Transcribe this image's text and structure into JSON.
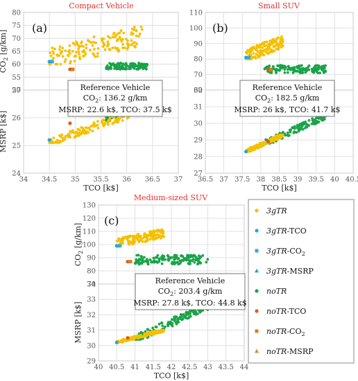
{
  "colors": {
    "3gTR": "#f5c000",
    "noTR": "#1aa34a",
    "min_tco": "#1fa8e0",
    "min_co2": "#33aad8",
    "min_msrp": "#2c9fd6",
    "no_tco": "#e05a1a",
    "no_co2": "#e07b1f",
    "no_msrp": "#d9862a",
    "title": "#e8302c",
    "grid": "#d9d9d9"
  },
  "legend": {
    "items": [
      {
        "label_prefix": "3gTR",
        "label_suffix": "",
        "marker": "dot",
        "color_key": "3gTR"
      },
      {
        "label_prefix": "3gTR",
        "label_suffix": "-TCO",
        "marker": "dot",
        "color_key": "min_tco"
      },
      {
        "label_prefix": "3gTR",
        "label_suffix": "-CO2",
        "marker": "square",
        "color_key": "min_co2"
      },
      {
        "label_prefix": "3gTR",
        "label_suffix": "-MSRP",
        "marker": "triangle",
        "color_key": "min_msrp"
      },
      {
        "label_prefix": "noTR",
        "label_suffix": "",
        "marker": "dot",
        "color_key": "noTR"
      },
      {
        "label_prefix": "noTR",
        "label_suffix": "-TCO",
        "marker": "dot",
        "color_key": "no_tco"
      },
      {
        "label_prefix": "noTR",
        "label_suffix": "-CO2",
        "marker": "square",
        "color_key": "no_co2"
      },
      {
        "label_prefix": "noTR",
        "label_suffix": "-MSRP",
        "marker": "triangle",
        "color_key": "no_msrp"
      }
    ]
  },
  "chart_data": [
    {
      "type": "scatter",
      "title": "Compact Vehicle",
      "panel_label": "(a)",
      "xlabel": "TCO [k$]",
      "xlim": [
        34,
        37
      ],
      "xticks": [
        34,
        34.5,
        35,
        35.5,
        36,
        36.5,
        37
      ],
      "top": {
        "ylabel": "CO2 [g/km]",
        "ylim": [
          50,
          80
        ],
        "yticks": [
          50,
          55,
          60,
          65,
          70,
          75,
          80
        ]
      },
      "bottom": {
        "ylabel": "MSRP [k$]",
        "ylim": [
          24,
          27
        ],
        "yticks": [
          24,
          25,
          26,
          27
        ]
      },
      "reference": {
        "title": "Reference Vehicle",
        "co2_line": "CO2: 136.2 g/km",
        "line3": "MSRP: 22.6 k$, TCO: 37.5 k$"
      },
      "series_3gTR": {
        "tco": [
          34.5,
          36.3
        ],
        "co2": [
          60,
          75
        ],
        "msrp": [
          25.1,
          26.3
        ]
      },
      "series_noTR": {
        "tco": [
          35.6,
          36.4
        ],
        "co2": [
          58,
          60.5
        ],
        "msrp": [
          25.9,
          26.8
        ]
      },
      "best": {
        "3gTR": {
          "tco": 34.5,
          "co2": 61,
          "msrp": 25.2
        },
        "noTR": {
          "tco": 34.9,
          "co2": 58,
          "msrp": 25.8
        }
      }
    },
    {
      "type": "scatter",
      "title": "Small SUV",
      "panel_label": "(b)",
      "xlabel": "TCO [k$]",
      "xlim": [
        36.5,
        40.5
      ],
      "xticks": [
        36.5,
        37,
        37.5,
        38,
        38.5,
        39,
        39.5,
        40,
        40.5
      ],
      "top": {
        "ylabel": "",
        "ylim": [
          60,
          110
        ],
        "yticks": [
          60,
          70,
          80,
          90,
          100,
          110
        ]
      },
      "bottom": {
        "ylabel": "",
        "ylim": [
          27,
          32
        ],
        "yticks": [
          27,
          28,
          29,
          30,
          31,
          32
        ]
      },
      "reference": {
        "title": "Reference Vehicle",
        "co2_line": "CO2: 182.5 g/km",
        "line3": "MSRP: 26 k$, TCO: 41.7 k$"
      },
      "series_3gTR": {
        "tco": [
          37.6,
          38.6
        ],
        "co2": [
          80,
          95
        ],
        "msrp": [
          28.3,
          29.3
        ]
      },
      "series_noTR": {
        "tco": [
          38.1,
          39.8
        ],
        "co2": [
          71,
          76
        ],
        "msrp": [
          28.8,
          30.5
        ]
      },
      "best": {
        "3gTR": {
          "tco": 37.6,
          "co2": 81,
          "msrp": 28.3
        },
        "noTR": {
          "tco": 38.2,
          "co2": 73,
          "msrp": 28.9
        }
      }
    },
    {
      "type": "scatter",
      "title": "Medium-sized SUV",
      "panel_label": "(c)",
      "xlabel": "TCO [k$]",
      "xlim": [
        40,
        44
      ],
      "xticks": [
        40,
        40.5,
        41,
        41.5,
        42,
        42.5,
        43,
        43.5,
        44
      ],
      "top": {
        "ylabel": "CO2 [g/km]",
        "ylim": [
          70,
          130
        ],
        "yticks": [
          70,
          80,
          90,
          100,
          110,
          120,
          130
        ]
      },
      "bottom": {
        "ylabel": "MSRP [k$]",
        "ylim": [
          29,
          34
        ],
        "yticks": [
          29,
          30,
          31,
          32,
          33,
          34
        ]
      },
      "reference": {
        "title": "Reference Vehicle",
        "co2_line": "CO2: 203.4 g/km",
        "line3": "MSRP: 27.8 k$, TCO: 44.8 k$"
      },
      "series_3gTR": {
        "tco": [
          40.5,
          41.8
        ],
        "co2": [
          99,
          112
        ],
        "msrp": [
          30.2,
          31.0
        ]
      },
      "series_noTR": {
        "tco": [
          41.0,
          43.0
        ],
        "co2": [
          85,
          92
        ],
        "msrp": [
          30.4,
          32.6
        ]
      },
      "best": {
        "3gTR": {
          "tco": 40.5,
          "co2": 99,
          "msrp": 30.2
        },
        "noTR": {
          "tco": 40.8,
          "co2": 87,
          "msrp": 30.5
        }
      }
    }
  ]
}
